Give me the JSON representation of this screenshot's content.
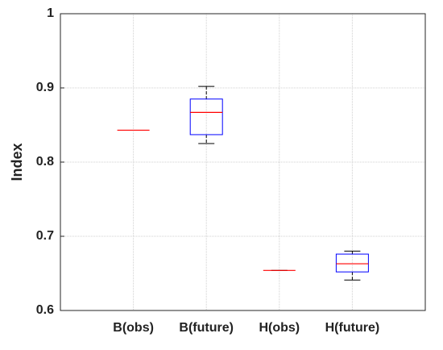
{
  "chart_data": {
    "type": "box",
    "y_label": "Index",
    "categories": [
      "B(obs)",
      "B(future)",
      "H(obs)",
      "H(future)"
    ],
    "min": [
      0.843,
      0.825,
      0.654,
      0.641
    ],
    "q1": [
      0.843,
      0.837,
      0.654,
      0.652
    ],
    "median": [
      0.843,
      0.867,
      0.654,
      0.663
    ],
    "q3": [
      0.843,
      0.885,
      0.654,
      0.676
    ],
    "max": [
      0.843,
      0.902,
      0.654,
      0.68
    ],
    "box_color": "#0000ff",
    "median_color": "#ff0000",
    "whisker_color": "#000000",
    "ylim": [
      0.6,
      1
    ],
    "yticks": [
      0.6,
      0.7,
      0.8,
      0.9,
      1
    ],
    "grid": true
  }
}
